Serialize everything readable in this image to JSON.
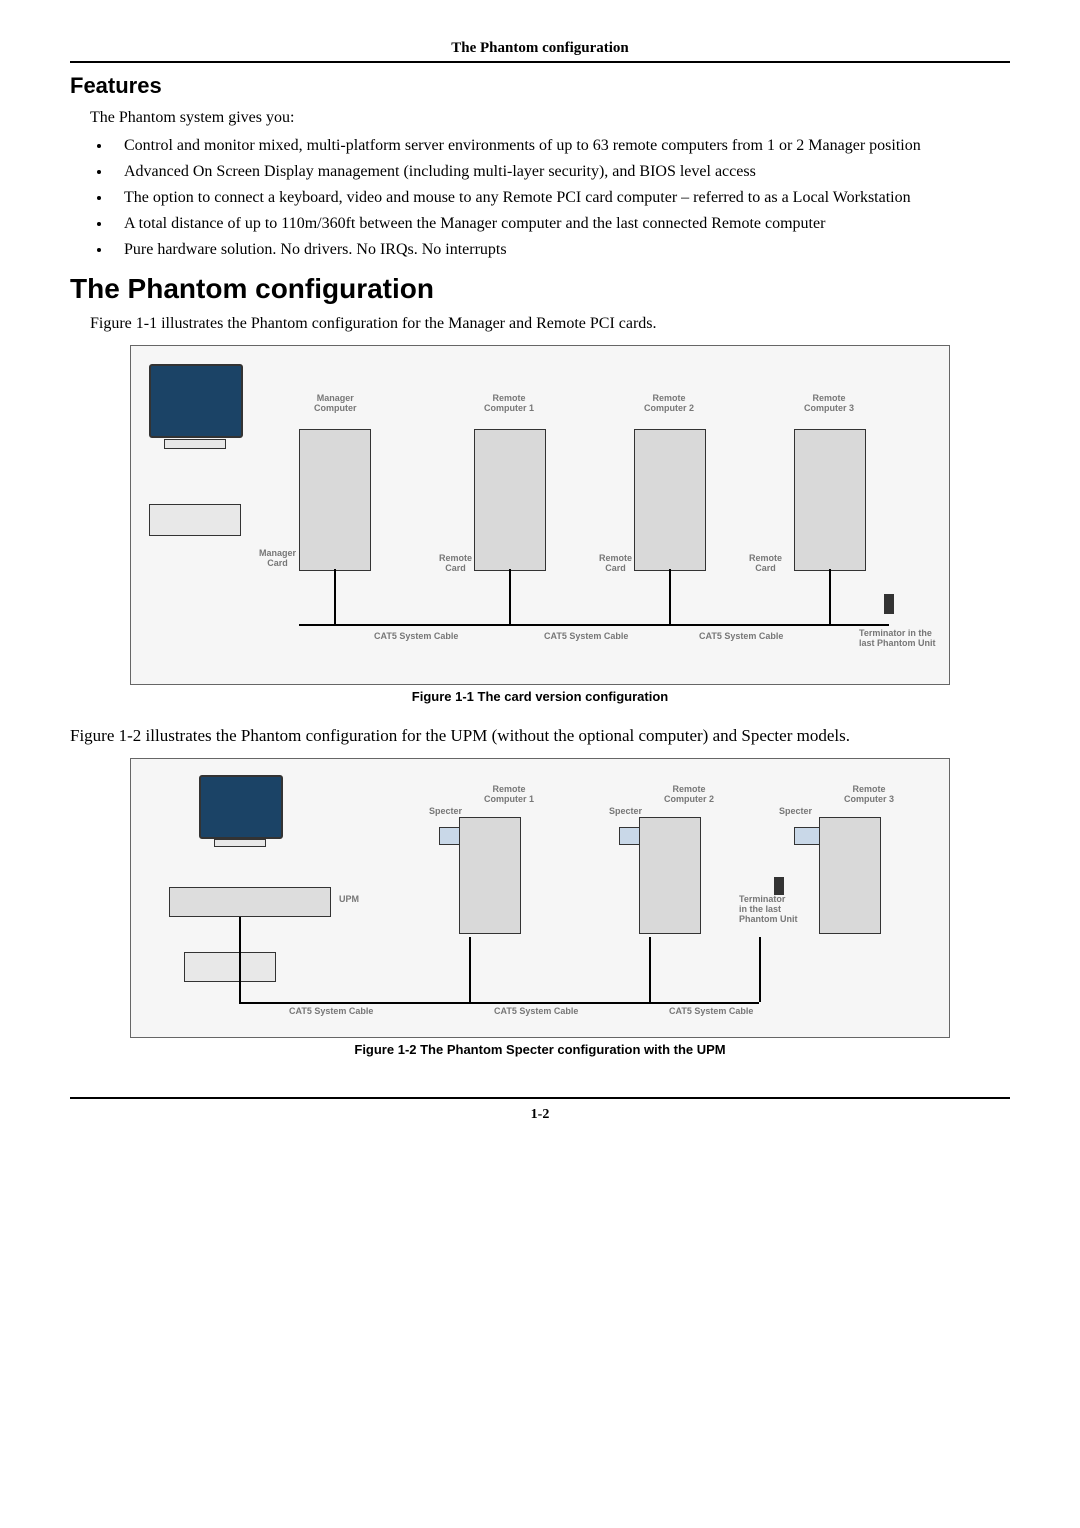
{
  "header": {
    "title": "The Phantom configuration"
  },
  "features": {
    "heading": "Features",
    "intro": "The Phantom system gives you:",
    "bullets": [
      "Control and monitor mixed, multi-platform server environments of up to 63 remote computers from 1 or 2 Manager position",
      "Advanced On Screen Display management (including multi-layer security), and BIOS level access",
      "The option to connect a keyboard, video and mouse to any Remote PCI card computer – referred to as a Local Workstation",
      "A total distance of up to 110m/360ft between the Manager computer and the last connected Remote computer",
      "Pure hardware solution. No drivers. No IRQs. No interrupts"
    ]
  },
  "config": {
    "heading": "The Phantom configuration",
    "para1": "Figure 1-1 illustrates the Phantom configuration for the Manager and Remote PCI cards.",
    "fig1_caption": "Figure 1-1 The card version configuration",
    "para2": "Figure 1-2 illustrates the Phantom configuration for the UPM (without the optional computer) and Specter models.",
    "fig2_caption": "Figure 1-2 The Phantom Specter configuration with the UPM"
  },
  "diagram1": {
    "labels": {
      "manager_computer": "Manager\nComputer",
      "remote1": "Remote\nComputer 1",
      "remote2": "Remote\nComputer 2",
      "remote3": "Remote\nComputer 3",
      "manager_card": "Manager\nCard",
      "remote_card": "Remote\nCard",
      "cat5": "CAT5 System Cable",
      "terminator": "Terminator in the\nlast Phantom Unit"
    }
  },
  "diagram2": {
    "labels": {
      "specter": "Specter",
      "remote1": "Remote\nComputer 1",
      "remote2": "Remote\nComputer 2",
      "remote3": "Remote\nComputer 3",
      "upm": "UPM",
      "terminator": "Terminator\nin the last\nPhantom Unit",
      "cat5": "CAT5 System Cable"
    }
  },
  "footer": {
    "page": "1-2"
  }
}
